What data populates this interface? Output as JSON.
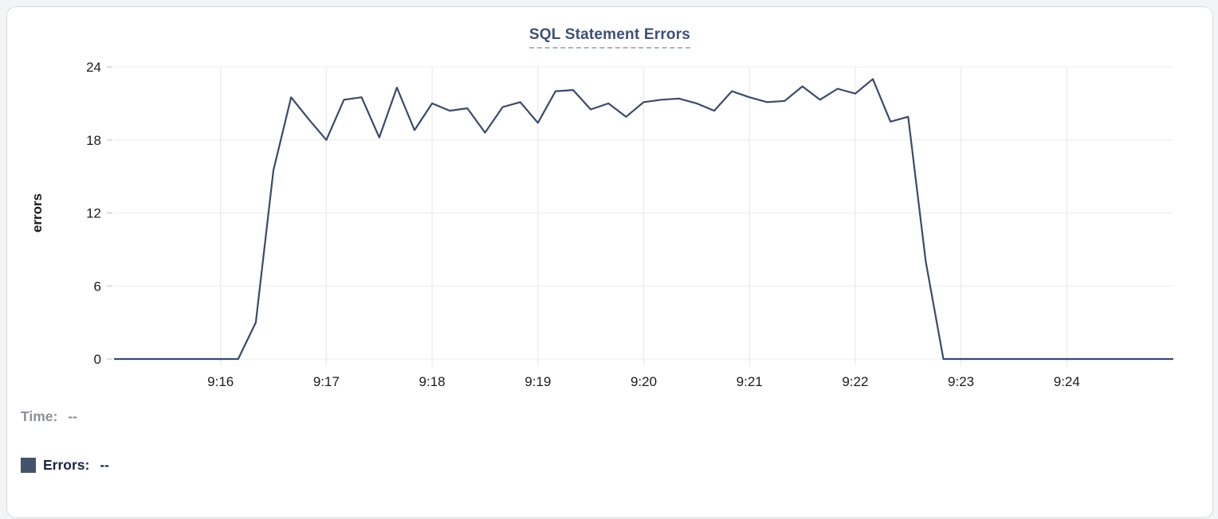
{
  "card": {
    "background": "#ffffff",
    "border_color": "#d9dadc"
  },
  "title": {
    "text": "SQL Statement Errors",
    "color": "#3e5078",
    "underline_style": "dashed"
  },
  "readout": {
    "time_label": "Time:",
    "time_value": "--",
    "errors_label": "Errors:",
    "errors_value": "--",
    "time_color": "#8d9095",
    "errors_color": "#1c2545",
    "swatch_color": "#45526d"
  },
  "chart_data": {
    "type": "line",
    "title": "SQL Statement Errors",
    "xlabel": "",
    "ylabel": "errors",
    "ylim": [
      0,
      24
    ],
    "y_ticks": [
      0,
      6,
      12,
      18,
      24
    ],
    "x_range_minutes": [
      0,
      10
    ],
    "x_start_time": "9:15:00",
    "x_end_time": "9:25:00",
    "sample_interval_seconds": 10,
    "x_ticks": [
      "9:16",
      "9:17",
      "9:18",
      "9:19",
      "9:20",
      "9:21",
      "9:22",
      "9:23",
      "9:24"
    ],
    "x_tick_minutes_from_start": [
      1,
      2,
      3,
      4,
      5,
      6,
      7,
      8,
      9
    ],
    "grid": true,
    "legend_position": "bottom-left",
    "series": [
      {
        "name": "Errors",
        "color": "#3b4a6b",
        "values": [
          0,
          0,
          0,
          0,
          0,
          0,
          0,
          0,
          3,
          15.5,
          21.5,
          19.7,
          18,
          21.3,
          21.5,
          18.2,
          22.3,
          18.8,
          21,
          20.4,
          20.6,
          18.6,
          20.7,
          21.1,
          19.4,
          22,
          22.1,
          20.5,
          21,
          19.9,
          21.1,
          21.3,
          21.4,
          21,
          20.4,
          22,
          21.5,
          21.1,
          21.2,
          22.4,
          21.3,
          22.2,
          21.8,
          23,
          19.5,
          19.9,
          8,
          0,
          0,
          0,
          0,
          0,
          0,
          0,
          0,
          0,
          0,
          0,
          0,
          0,
          0
        ]
      }
    ]
  }
}
